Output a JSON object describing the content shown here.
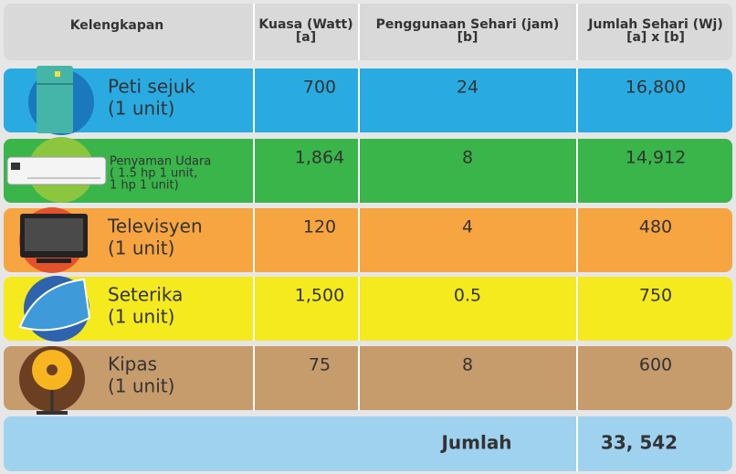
{
  "header": {
    "columns": [
      {
        "lines": [
          "Kelengkapan"
        ]
      },
      {
        "lines": [
          "Kuasa (Watt)",
          "[a]"
        ]
      },
      {
        "lines": [
          "Penggunaan Sehari (jam)",
          "[b]"
        ]
      },
      {
        "lines": [
          "Jumlah Sehari (Wj)",
          "[a] x [b]"
        ]
      }
    ]
  },
  "rows": [
    {
      "item": [
        "Peti sejuk",
        "(1 unit)"
      ],
      "power": "700",
      "hours": "24",
      "daily": "16,800"
    },
    {
      "item": [
        "Penyaman Udara",
        "( 1.5 hp  1 unit,",
        "1 hp 1 unit)"
      ],
      "power": "1,864",
      "hours": "8",
      "daily": "14,912"
    },
    {
      "item": [
        "Televisyen",
        "(1 unit)"
      ],
      "power": "120",
      "hours": "4",
      "daily": "480"
    },
    {
      "item": [
        "Seterika",
        "(1 unit)"
      ],
      "power": "1,500",
      "hours": "0.5",
      "daily": "750"
    },
    {
      "item": [
        "Kipas",
        "(1 unit)"
      ],
      "power": "75",
      "hours": "8",
      "daily": "600"
    }
  ],
  "total": {
    "label": "Jumlah",
    "value": "33, 542"
  }
}
